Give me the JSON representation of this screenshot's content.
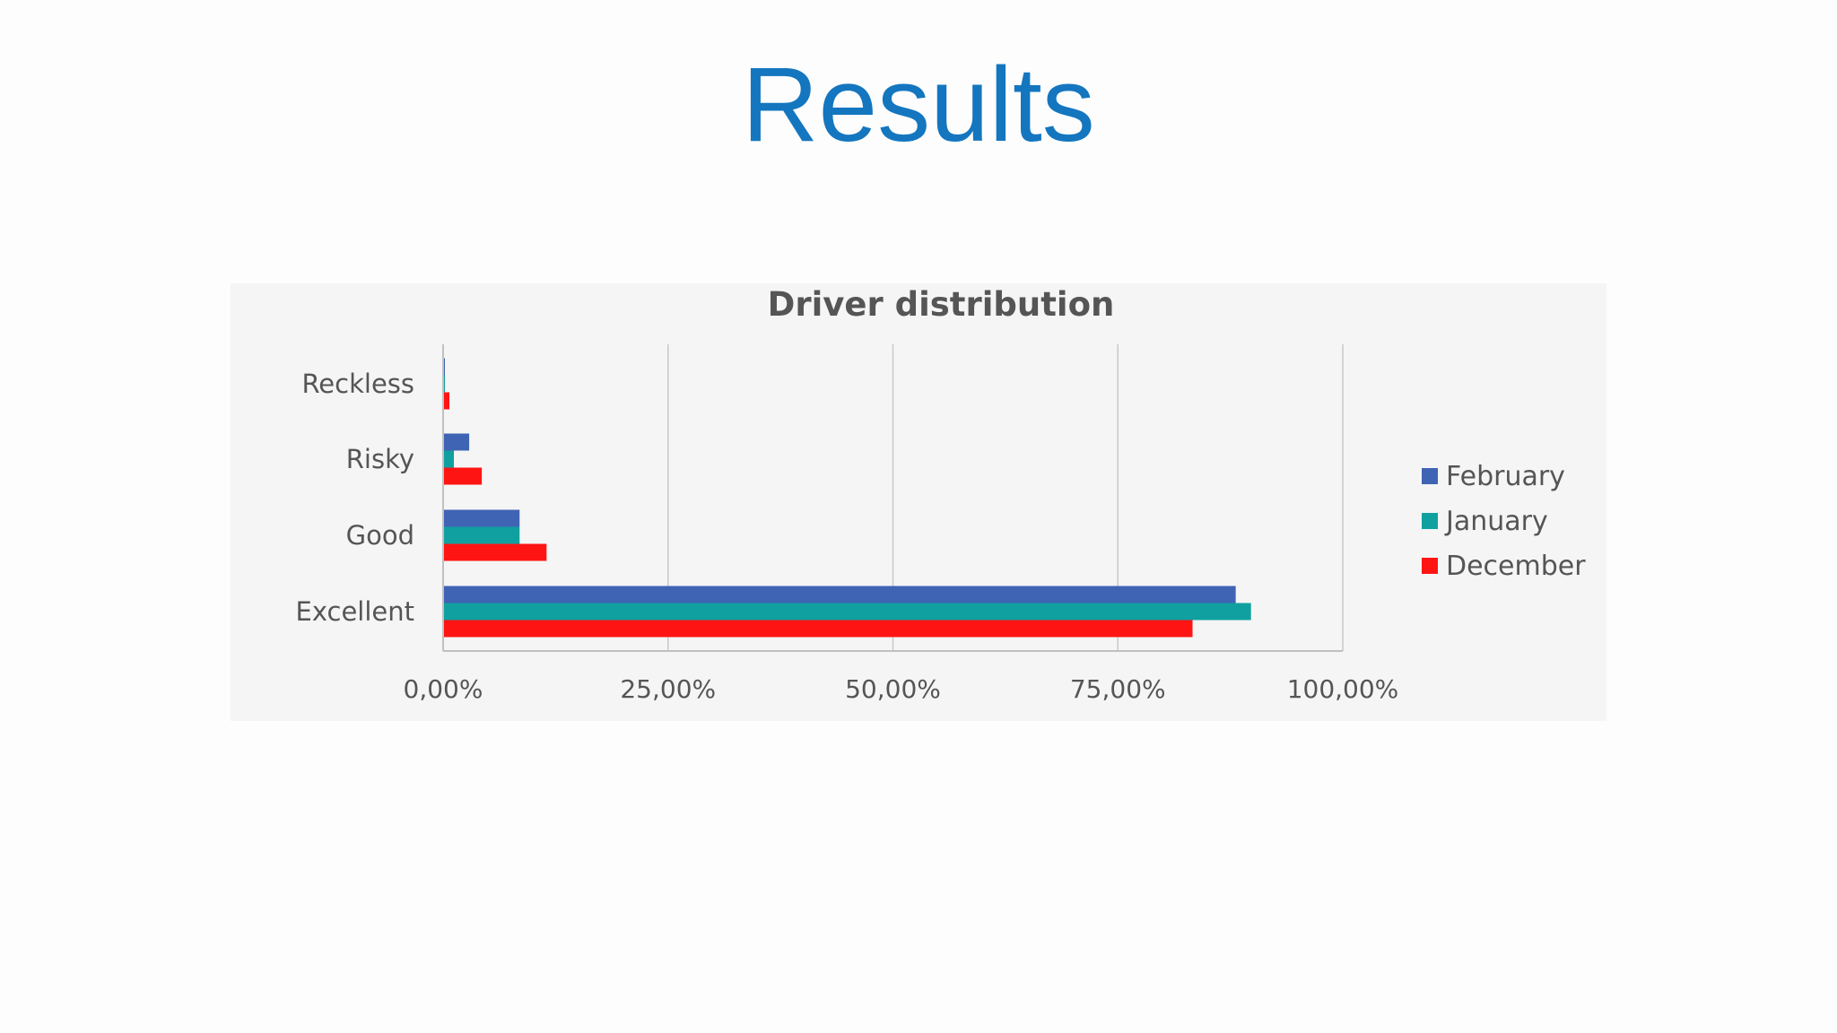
{
  "slide": {
    "title": "Results"
  },
  "chart_data": {
    "type": "bar",
    "orientation": "horizontal",
    "title": "Driver distribution",
    "xlabel": "",
    "ylabel": "",
    "categories": [
      "Reckless",
      "Risky",
      "Good",
      "Excellent"
    ],
    "series": [
      {
        "name": "February",
        "color": "#3f64b4",
        "values": [
          0.2,
          2.9,
          8.5,
          88.1
        ]
      },
      {
        "name": "January",
        "color": "#10a0a0",
        "values": [
          0.2,
          1.2,
          8.5,
          89.8
        ]
      },
      {
        "name": "December",
        "color": "#ff1414",
        "values": [
          0.7,
          4.3,
          11.5,
          83.3
        ]
      }
    ],
    "xlim": [
      0,
      100
    ],
    "xticks": [
      0,
      25,
      50,
      75,
      100
    ],
    "xtick_labels": [
      "0,00%",
      "25,00%",
      "50,00%",
      "75,00%",
      "100,00%"
    ],
    "grid": true,
    "legend_position": "right",
    "colors": {
      "grid": "#c8c8c8",
      "axis": "#c0c0c0",
      "text": "#555555",
      "panel": "#f5f5f5"
    }
  }
}
